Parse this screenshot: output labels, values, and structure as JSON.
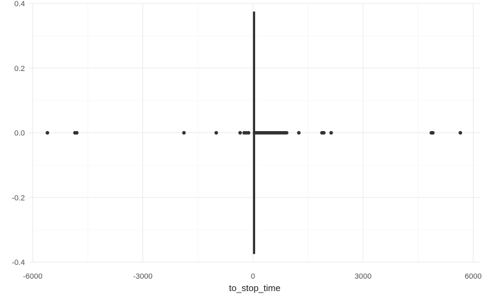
{
  "chart_data": {
    "type": "boxplot",
    "xlabel": "to_stop_time",
    "ylabel": "",
    "xlim": [
      -6100,
      6200
    ],
    "ylim": [
      -0.4,
      0.4
    ],
    "x_ticks": [
      -6000,
      -3000,
      0,
      3000,
      6000
    ],
    "x_tick_labels": [
      "-6000",
      "-3000",
      "0",
      "3000",
      "6000"
    ],
    "x_minor_ticks": [
      -4500,
      -1500,
      1500,
      4500
    ],
    "y_ticks": [
      -0.4,
      -0.2,
      0.0,
      0.2,
      0.4
    ],
    "y_tick_labels": [
      "-0.4",
      "-0.2",
      "0.0",
      "0.2",
      "0.4"
    ],
    "y_minor_ticks": [
      -0.3,
      -0.1,
      0.1,
      0.3
    ],
    "grid": true,
    "box": {
      "x": 30,
      "ymin": -0.375,
      "ymax": 0.375,
      "whisker_low": 0,
      "whisker_high": 900,
      "color": "#333333"
    },
    "outliers": [
      {
        "x": -5600,
        "y": 0
      },
      {
        "x": -4850,
        "y": 0
      },
      {
        "x": -4800,
        "y": 0
      },
      {
        "x": -1880,
        "y": 0
      },
      {
        "x": -1000,
        "y": 0
      },
      {
        "x": -350,
        "y": 0
      },
      {
        "x": -240,
        "y": 0
      },
      {
        "x": -180,
        "y": 0
      },
      {
        "x": -120,
        "y": 0
      },
      {
        "x": 1250,
        "y": 0
      },
      {
        "x": 1880,
        "y": 0
      },
      {
        "x": 1930,
        "y": 0
      },
      {
        "x": 2130,
        "y": 0
      },
      {
        "x": 4860,
        "y": 0
      },
      {
        "x": 4900,
        "y": 0
      },
      {
        "x": 5650,
        "y": 0
      }
    ],
    "point_color": "#333333"
  }
}
